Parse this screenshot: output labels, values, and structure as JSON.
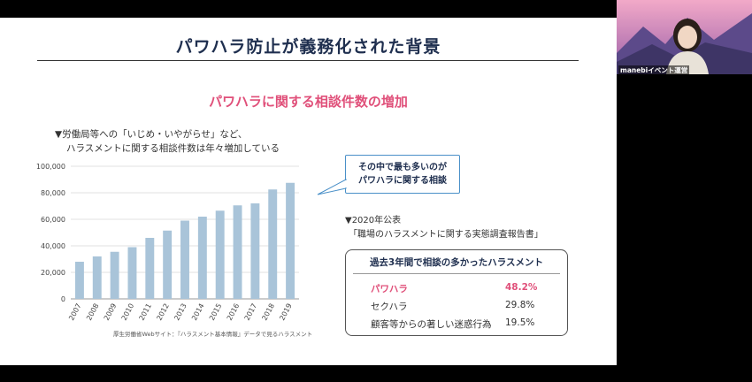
{
  "slide": {
    "title": "パワハラ防止が義務化された背景",
    "subtitle": "パワハラに関する相談件数の増加",
    "note_line1": "▼労働局等への「いじめ・いやがらせ」など、",
    "note_line2": "ハラスメントに関する相談件数は年々増加している",
    "callout_line1": "その中で最も多いのが",
    "callout_line2": "パワハラに関する相談",
    "source": "厚生労働省Webサイト：『ハラスメント基本情報』データで見るハラスメント",
    "survey_line1": "▼2020年公表",
    "survey_line2": "「職場のハラスメントに関する実態調査報告書」",
    "box_title": "過去3年間で相談の多かったハラスメント",
    "rows": [
      {
        "label": "パワハラ",
        "value": "48.2%"
      },
      {
        "label": "セクハラ",
        "value": "29.8%"
      },
      {
        "label": "顧客等からの著しい迷惑行為",
        "value": "19.5%"
      }
    ]
  },
  "chart_data": {
    "type": "bar",
    "categories": [
      "2007",
      "2008",
      "2009",
      "2010",
      "2011",
      "2012",
      "2013",
      "2014",
      "2015",
      "2016",
      "2017",
      "2018",
      "2019"
    ],
    "values": [
      28000,
      32000,
      35500,
      39000,
      46000,
      51500,
      59000,
      62000,
      66500,
      70500,
      72000,
      82500,
      87500
    ],
    "ylim": [
      0,
      100000
    ],
    "yticks": [
      "0",
      "20,000",
      "40,000",
      "60,000",
      "80,000",
      "100,000"
    ],
    "grid": true,
    "bar_color": "#a9c4d9"
  },
  "video": {
    "participant_name": "manebiイベント運営",
    "colors": {
      "sky": "#d96fb0",
      "mountain": "#5c4a8a",
      "shirt": "#e8e2d8"
    }
  }
}
